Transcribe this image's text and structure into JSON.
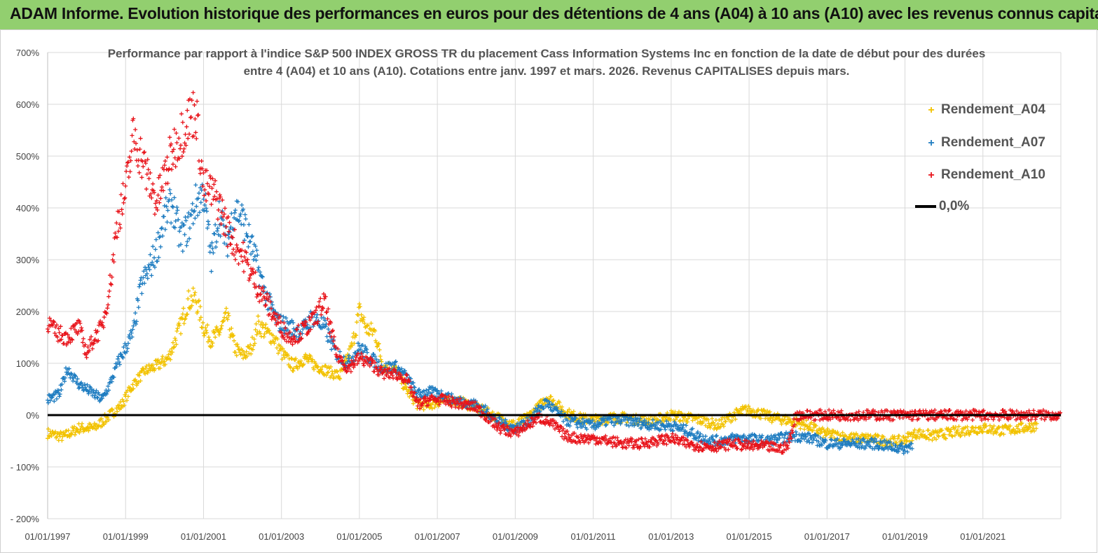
{
  "header": {
    "title": "ADAM Informe. Evolution historique des performances en euros pour des détentions de 4 ans (A04) à 10 ans (A10) avec les revenus connus capitalisés"
  },
  "chart_data": {
    "type": "scatter",
    "title_lines": [
      "Performance par rapport à l'indice S&P 500 INDEX GROSS TR  du placement Cass Information Systems Inc en fonction de la date de début pour des durées",
      "entre 4 (A04) et 10 ans (A10).  Cotations entre janv. 1997 et mars. 2026. Revenus CAPITALISES depuis mars."
    ],
    "x_tick_labels": [
      "01/01/1997",
      "01/01/1999",
      "01/01/2001",
      "01/01/2003",
      "01/01/2005",
      "01/01/2007",
      "01/01/2009",
      "01/01/2011",
      "01/01/2013",
      "01/01/2015",
      "01/01/2017",
      "01/01/2019",
      "01/01/2021"
    ],
    "x_range_years": [
      1997.0,
      2023.0
    ],
    "y_tick_labels": [
      "- 200%",
      "- 100%",
      "0%",
      "100%",
      "200%",
      "300%",
      "400%",
      "500%",
      "600%",
      "700%"
    ],
    "y_tick_values": [
      -200,
      -100,
      0,
      100,
      200,
      300,
      400,
      500,
      600,
      700
    ],
    "ylim": [
      -200,
      700
    ],
    "grid": true,
    "legend_position": "top-right",
    "series": [
      {
        "name": "Rendement_A04",
        "color": "#f2c200",
        "marker": "+",
        "points": [
          [
            1997.0,
            -35
          ],
          [
            1997.4,
            -42
          ],
          [
            1997.8,
            -25
          ],
          [
            1998.2,
            -25
          ],
          [
            1998.6,
            0
          ],
          [
            1998.9,
            20
          ],
          [
            1999.2,
            60
          ],
          [
            1999.5,
            85
          ],
          [
            1999.8,
            95
          ],
          [
            2000.1,
            110
          ],
          [
            2000.4,
            170
          ],
          [
            2000.6,
            220
          ],
          [
            2000.8,
            225
          ],
          [
            2001.0,
            170
          ],
          [
            2001.2,
            145
          ],
          [
            2001.4,
            160
          ],
          [
            2001.6,
            190
          ],
          [
            2001.8,
            130
          ],
          [
            2002.0,
            115
          ],
          [
            2002.2,
            125
          ],
          [
            2002.4,
            175
          ],
          [
            2002.6,
            160
          ],
          [
            2002.8,
            150
          ],
          [
            2003.0,
            120
          ],
          [
            2003.3,
            95
          ],
          [
            2003.6,
            110
          ],
          [
            2003.9,
            95
          ],
          [
            2004.2,
            85
          ],
          [
            2004.5,
            75
          ],
          [
            2004.8,
            130
          ],
          [
            2005.0,
            200
          ],
          [
            2005.2,
            165
          ],
          [
            2005.4,
            160
          ],
          [
            2005.6,
            95
          ],
          [
            2005.9,
            90
          ],
          [
            2006.2,
            50
          ],
          [
            2006.5,
            20
          ],
          [
            2006.8,
            20
          ],
          [
            2007.0,
            25
          ],
          [
            2007.3,
            30
          ],
          [
            2007.6,
            25
          ],
          [
            2008.0,
            15
          ],
          [
            2008.4,
            0
          ],
          [
            2008.7,
            -10
          ],
          [
            2009.0,
            -20
          ],
          [
            2009.3,
            -5
          ],
          [
            2009.6,
            15
          ],
          [
            2009.8,
            35
          ],
          [
            2010.0,
            25
          ],
          [
            2010.3,
            5
          ],
          [
            2010.6,
            -5
          ],
          [
            2011.0,
            -10
          ],
          [
            2011.4,
            -5
          ],
          [
            2011.8,
            -5
          ],
          [
            2012.2,
            -10
          ],
          [
            2012.6,
            -10
          ],
          [
            2013.0,
            0
          ],
          [
            2013.4,
            -5
          ],
          [
            2013.8,
            -10
          ],
          [
            2014.2,
            -20
          ],
          [
            2014.6,
            0
          ],
          [
            2014.9,
            10
          ],
          [
            2015.2,
            5
          ],
          [
            2015.6,
            -5
          ],
          [
            2016.0,
            -10
          ],
          [
            2016.5,
            -20
          ],
          [
            2016.9,
            -35
          ],
          [
            2017.3,
            -40
          ],
          [
            2017.7,
            -45
          ],
          [
            2018.1,
            -45
          ],
          [
            2018.5,
            -50
          ],
          [
            2018.9,
            -50
          ],
          [
            2019.3,
            -35
          ],
          [
            2019.7,
            -40
          ],
          [
            2020.1,
            -35
          ],
          [
            2020.5,
            -30
          ],
          [
            2021.0,
            -25
          ],
          [
            2021.5,
            -30
          ],
          [
            2022.0,
            -25
          ],
          [
            2022.4,
            -20
          ]
        ]
      },
      {
        "name": "Rendement_A07",
        "color": "#1f7dc1",
        "marker": "+",
        "points": [
          [
            1997.0,
            30
          ],
          [
            1997.3,
            40
          ],
          [
            1997.5,
            90
          ],
          [
            1997.8,
            60
          ],
          [
            1998.0,
            50
          ],
          [
            1998.2,
            40
          ],
          [
            1998.4,
            30
          ],
          [
            1998.6,
            60
          ],
          [
            1998.8,
            100
          ],
          [
            1999.0,
            130
          ],
          [
            1999.2,
            160
          ],
          [
            1999.4,
            250
          ],
          [
            1999.6,
            280
          ],
          [
            1999.8,
            320
          ],
          [
            2000.0,
            380
          ],
          [
            2000.2,
            410
          ],
          [
            2000.4,
            340
          ],
          [
            2000.6,
            360
          ],
          [
            2000.8,
            410
          ],
          [
            2001.0,
            430
          ],
          [
            2001.2,
            300
          ],
          [
            2001.4,
            390
          ],
          [
            2001.6,
            330
          ],
          [
            2001.8,
            400
          ],
          [
            2002.0,
            380
          ],
          [
            2002.3,
            310
          ],
          [
            2002.6,
            230
          ],
          [
            2002.9,
            180
          ],
          [
            2003.2,
            170
          ],
          [
            2003.5,
            160
          ],
          [
            2003.8,
            190
          ],
          [
            2004.1,
            170
          ],
          [
            2004.4,
            120
          ],
          [
            2004.7,
            100
          ],
          [
            2005.0,
            130
          ],
          [
            2005.3,
            110
          ],
          [
            2005.6,
            90
          ],
          [
            2005.9,
            95
          ],
          [
            2006.2,
            75
          ],
          [
            2006.5,
            40
          ],
          [
            2006.8,
            45
          ],
          [
            2007.1,
            40
          ],
          [
            2007.4,
            30
          ],
          [
            2007.7,
            25
          ],
          [
            2008.0,
            20
          ],
          [
            2008.3,
            5
          ],
          [
            2008.6,
            -15
          ],
          [
            2009.0,
            -25
          ],
          [
            2009.3,
            -15
          ],
          [
            2009.6,
            10
          ],
          [
            2009.8,
            25
          ],
          [
            2010.0,
            10
          ],
          [
            2010.3,
            -10
          ],
          [
            2010.6,
            -15
          ],
          [
            2011.0,
            -20
          ],
          [
            2011.4,
            -10
          ],
          [
            2011.8,
            -10
          ],
          [
            2012.2,
            -15
          ],
          [
            2012.6,
            -20
          ],
          [
            2013.0,
            -20
          ],
          [
            2013.4,
            -30
          ],
          [
            2013.8,
            -45
          ],
          [
            2014.2,
            -50
          ],
          [
            2014.6,
            -45
          ],
          [
            2015.0,
            -45
          ],
          [
            2015.4,
            -50
          ],
          [
            2015.8,
            -45
          ],
          [
            2016.2,
            -40
          ],
          [
            2016.6,
            -45
          ],
          [
            2017.0,
            -55
          ],
          [
            2017.4,
            -55
          ],
          [
            2017.8,
            -55
          ],
          [
            2018.2,
            -55
          ],
          [
            2018.6,
            -60
          ],
          [
            2019.0,
            -65
          ],
          [
            2019.2,
            -55
          ]
        ]
      },
      {
        "name": "Rendement_A10",
        "color": "#e8141b",
        "marker": "+",
        "points": [
          [
            1997.0,
            180
          ],
          [
            1997.2,
            160
          ],
          [
            1997.5,
            150
          ],
          [
            1997.8,
            170
          ],
          [
            1998.0,
            120
          ],
          [
            1998.2,
            150
          ],
          [
            1998.4,
            170
          ],
          [
            1998.6,
            250
          ],
          [
            1998.8,
            380
          ],
          [
            1999.0,
            430
          ],
          [
            1999.2,
            540
          ],
          [
            1999.4,
            500
          ],
          [
            1999.6,
            450
          ],
          [
            1999.8,
            410
          ],
          [
            2000.0,
            460
          ],
          [
            2000.2,
            510
          ],
          [
            2000.4,
            540
          ],
          [
            2000.6,
            570
          ],
          [
            2000.8,
            590
          ],
          [
            2001.0,
            440
          ],
          [
            2001.2,
            430
          ],
          [
            2001.4,
            410
          ],
          [
            2001.6,
            360
          ],
          [
            2001.8,
            330
          ],
          [
            2002.0,
            310
          ],
          [
            2002.3,
            260
          ],
          [
            2002.6,
            220
          ],
          [
            2002.9,
            180
          ],
          [
            2003.2,
            150
          ],
          [
            2003.5,
            160
          ],
          [
            2003.8,
            180
          ],
          [
            2004.1,
            220
          ],
          [
            2004.4,
            120
          ],
          [
            2004.7,
            90
          ],
          [
            2005.0,
            110
          ],
          [
            2005.3,
            100
          ],
          [
            2005.6,
            80
          ],
          [
            2005.9,
            80
          ],
          [
            2006.2,
            70
          ],
          [
            2006.5,
            20
          ],
          [
            2006.8,
            30
          ],
          [
            2007.1,
            30
          ],
          [
            2007.4,
            25
          ],
          [
            2007.7,
            20
          ],
          [
            2008.0,
            15
          ],
          [
            2008.3,
            -5
          ],
          [
            2008.6,
            -25
          ],
          [
            2009.0,
            -35
          ],
          [
            2009.3,
            -20
          ],
          [
            2009.6,
            -5
          ],
          [
            2009.8,
            -10
          ],
          [
            2010.0,
            -20
          ],
          [
            2010.3,
            -40
          ],
          [
            2010.6,
            -45
          ],
          [
            2011.0,
            -45
          ],
          [
            2011.4,
            -50
          ],
          [
            2011.8,
            -55
          ],
          [
            2012.2,
            -55
          ],
          [
            2012.6,
            -50
          ],
          [
            2013.0,
            -45
          ],
          [
            2013.4,
            -55
          ],
          [
            2013.8,
            -60
          ],
          [
            2014.2,
            -60
          ],
          [
            2014.6,
            -55
          ],
          [
            2015.0,
            -60
          ],
          [
            2015.4,
            -60
          ],
          [
            2015.8,
            -65
          ],
          [
            2016.0,
            -60
          ],
          [
            2016.2,
            0
          ],
          [
            2017.0,
            0
          ],
          [
            2018.0,
            0
          ],
          [
            2019.0,
            0
          ],
          [
            2020.0,
            0
          ],
          [
            2021.0,
            0
          ],
          [
            2022.0,
            0
          ],
          [
            2023.0,
            0
          ]
        ]
      },
      {
        "name": "0,0%",
        "color": "#000000",
        "marker": "line",
        "points": [
          [
            1997.0,
            0
          ],
          [
            2023.0,
            0
          ]
        ]
      }
    ]
  }
}
